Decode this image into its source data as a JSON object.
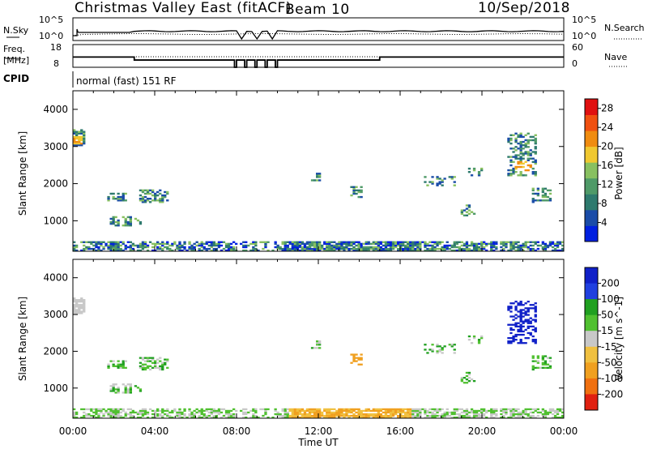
{
  "header": {
    "title": "Christmas Valley East (fitACF)",
    "beam": "Beam 10",
    "date": "10/Sep/2018"
  },
  "sky_panel": {
    "left_label": "N.Sky",
    "right_label": "N.Search",
    "left_ticks": [
      "10^5",
      "10^0"
    ],
    "right_ticks": [
      "10^5",
      "10^0"
    ]
  },
  "freq_panel": {
    "left_label_1": "Freq.",
    "left_label_2": "[MHz]",
    "right_label": "Nave",
    "left_ticks": [
      "18",
      "8"
    ],
    "right_ticks": [
      "60",
      "0"
    ]
  },
  "cpid": {
    "label": "CPID",
    "value": "normal (fast) 151 RF"
  },
  "colors": {
    "power": [
      "#0020e0",
      "#1a4ca8",
      "#2e7a6e",
      "#4f9a68",
      "#88c060",
      "#f0c830",
      "#f08c10",
      "#f05010",
      "#e01010"
    ],
    "velocity": [
      "#1020c8",
      "#2040e0",
      "#20a020",
      "#50c030",
      "#c8c8c8",
      "#f0c040",
      "#f0a020",
      "#f07010",
      "#e02010"
    ]
  },
  "chart_data": [
    {
      "type": "heatmap",
      "name": "power",
      "ylabel": "Slant Range [km]",
      "xlabel": "",
      "ylim": [
        180,
        4500
      ],
      "xlim_hours": [
        0,
        24
      ],
      "y_ticks": [
        "1000",
        "2000",
        "3000",
        "4000"
      ],
      "colorbar_label": "Power [dB]",
      "colorbar_ticks": [
        "4",
        "8",
        "12",
        "16",
        "20",
        "24",
        "28"
      ],
      "colorbar_range": [
        0,
        30
      ]
    },
    {
      "type": "heatmap",
      "name": "velocity",
      "ylabel": "Slant Range [km]",
      "xlabel": "Time UT",
      "ylim": [
        180,
        4500
      ],
      "xlim_hours": [
        0,
        24
      ],
      "x_ticks": [
        "00:00",
        "04:00",
        "08:00",
        "12:00",
        "16:00",
        "20:00",
        "00:00"
      ],
      "y_ticks": [
        "1000",
        "2000",
        "3000",
        "4000"
      ],
      "colorbar_label": "Velocity [m s^-1]",
      "colorbar_ticks": [
        "200",
        "100",
        "50",
        "15",
        "-15",
        "-50",
        "-100",
        "-200"
      ]
    }
  ]
}
